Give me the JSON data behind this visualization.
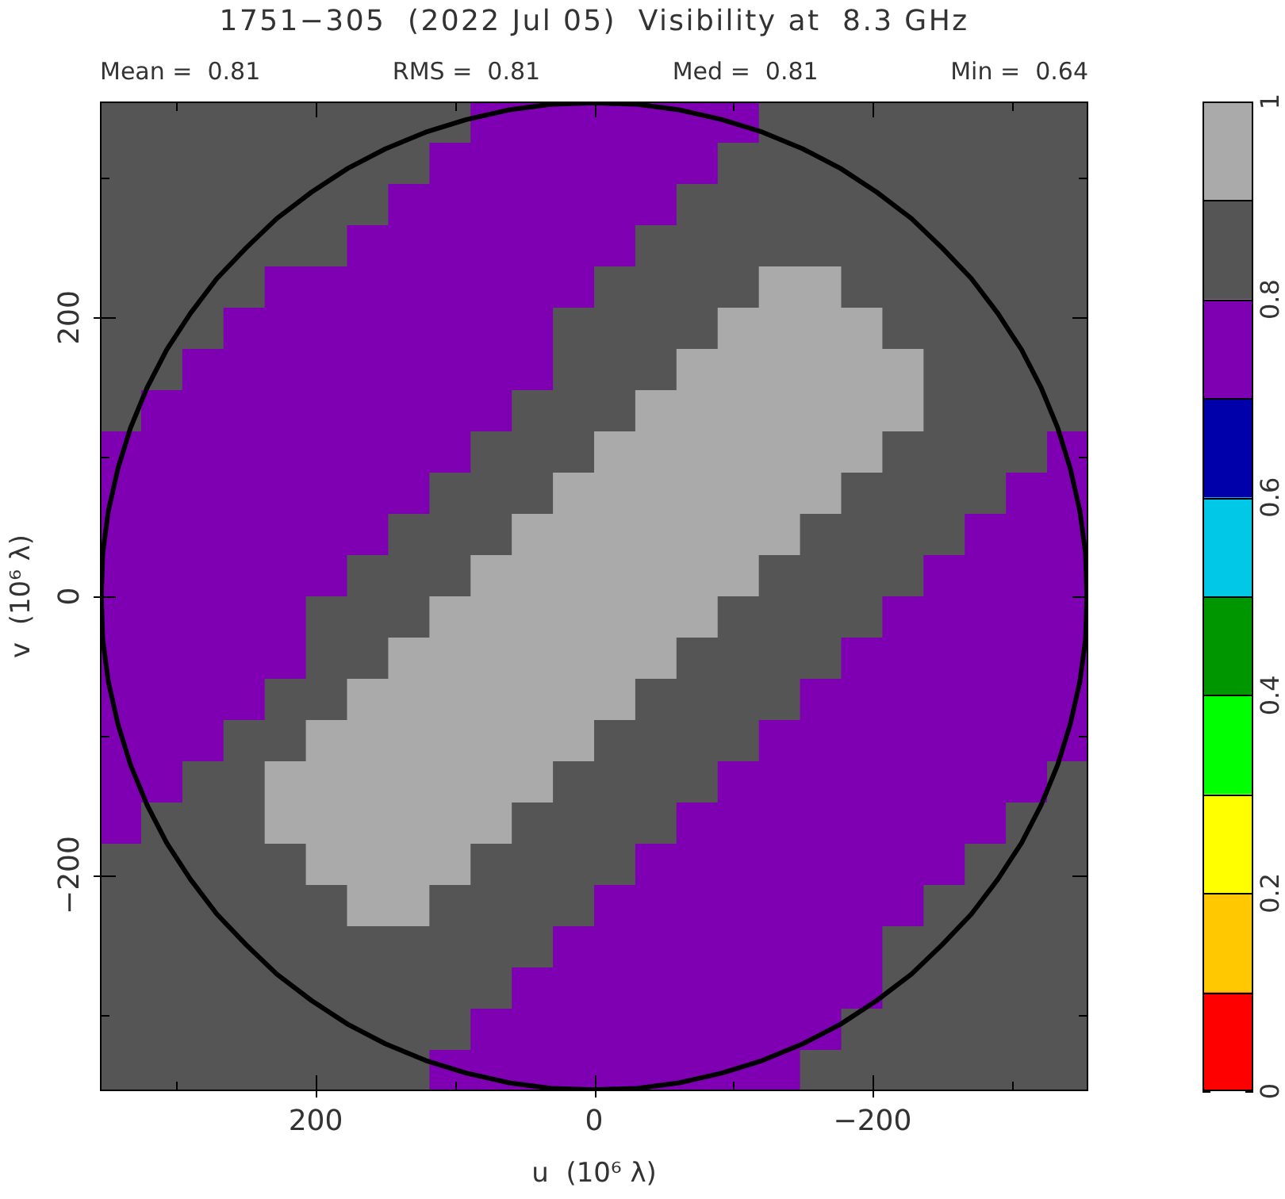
{
  "chart_data": {
    "type": "heatmap",
    "title": "1751−305  (2022 Jul 05)  Visibility at  8.3 GHz",
    "xlabel": "u  (10⁶ λ)",
    "ylabel": "v  (10⁶ λ)",
    "annotations": [
      "Mean =  0.81",
      "RMS =  0.81",
      "Med =  0.81",
      "Min =  0.64"
    ],
    "xlim": [
      355,
      -355
    ],
    "xticks": [
      {
        "value": 300,
        "label": null
      },
      200,
      {
        "value": 100,
        "label": null
      },
      0,
      {
        "value": -100,
        "label": null
      },
      {
        "value": -200,
        "label": "−200"
      },
      {
        "value": -300,
        "label": null
      }
    ],
    "ylim": [
      -355,
      355
    ],
    "yticks": [
      {
        "value": -300,
        "label": null
      },
      {
        "value": -200,
        "label": "−200"
      },
      {
        "value": -100,
        "label": null
      },
      0,
      {
        "value": 100,
        "label": null
      },
      200,
      {
        "value": 300,
        "label": null
      }
    ],
    "clim": [
      0,
      1
    ],
    "cticks": [
      0,
      0.2,
      0.4,
      0.6,
      0.8,
      1
    ],
    "colors": [
      "#ff0000",
      "#ffc800",
      "#ffff00",
      "#00ff00",
      "#009600",
      "#00c8e6",
      "#0000aa",
      "#7f00b2",
      "#555555",
      "#aaaaaa"
    ],
    "cells": [
      [
        0.85,
        0.85,
        0.85,
        0.85,
        0.85,
        0.85,
        0.85,
        0.85,
        0.85,
        0.75,
        0.75,
        0.75,
        0.75,
        0.75,
        0.75,
        0.75,
        0.85,
        0.85,
        0.85,
        0.85,
        0.85,
        0.85,
        0.85,
        0.85
      ],
      [
        0.85,
        0.85,
        0.85,
        0.85,
        0.85,
        0.85,
        0.85,
        0.85,
        0.75,
        0.75,
        0.75,
        0.75,
        0.75,
        0.75,
        0.75,
        0.85,
        0.85,
        0.85,
        0.85,
        0.85,
        0.85,
        0.85,
        0.85,
        0.85
      ],
      [
        0.85,
        0.85,
        0.85,
        0.85,
        0.85,
        0.85,
        0.85,
        0.75,
        0.75,
        0.75,
        0.75,
        0.75,
        0.75,
        0.75,
        0.85,
        0.85,
        0.85,
        0.85,
        0.85,
        0.85,
        0.85,
        0.85,
        0.85,
        0.85
      ],
      [
        0.85,
        0.85,
        0.85,
        0.85,
        0.85,
        0.85,
        0.75,
        0.75,
        0.75,
        0.75,
        0.75,
        0.75,
        0.75,
        0.85,
        0.85,
        0.85,
        0.85,
        0.85,
        0.85,
        0.85,
        0.85,
        0.85,
        0.85,
        0.85
      ],
      [
        0.85,
        0.85,
        0.85,
        0.85,
        0.75,
        0.75,
        0.75,
        0.75,
        0.75,
        0.75,
        0.75,
        0.75,
        0.85,
        0.85,
        0.85,
        0.85,
        0.95,
        0.95,
        0.85,
        0.85,
        0.85,
        0.85,
        0.85,
        0.85
      ],
      [
        0.85,
        0.85,
        0.85,
        0.75,
        0.75,
        0.75,
        0.75,
        0.75,
        0.75,
        0.75,
        0.75,
        0.85,
        0.85,
        0.85,
        0.85,
        0.95,
        0.95,
        0.95,
        0.95,
        0.85,
        0.85,
        0.85,
        0.85,
        0.85
      ],
      [
        0.85,
        0.85,
        0.75,
        0.75,
        0.75,
        0.75,
        0.75,
        0.75,
        0.75,
        0.75,
        0.75,
        0.85,
        0.85,
        0.85,
        0.95,
        0.95,
        0.95,
        0.95,
        0.95,
        0.95,
        0.85,
        0.85,
        0.85,
        0.85
      ],
      [
        0.85,
        0.75,
        0.75,
        0.75,
        0.75,
        0.75,
        0.75,
        0.75,
        0.75,
        0.75,
        0.85,
        0.85,
        0.85,
        0.95,
        0.95,
        0.95,
        0.95,
        0.95,
        0.95,
        0.95,
        0.85,
        0.85,
        0.85,
        0.85
      ],
      [
        0.75,
        0.75,
        0.75,
        0.75,
        0.75,
        0.75,
        0.75,
        0.75,
        0.75,
        0.85,
        0.85,
        0.85,
        0.95,
        0.95,
        0.95,
        0.95,
        0.95,
        0.95,
        0.95,
        0.85,
        0.85,
        0.85,
        0.85,
        0.75
      ],
      [
        0.75,
        0.75,
        0.75,
        0.75,
        0.75,
        0.75,
        0.75,
        0.75,
        0.85,
        0.85,
        0.85,
        0.95,
        0.95,
        0.95,
        0.95,
        0.95,
        0.95,
        0.95,
        0.85,
        0.85,
        0.85,
        0.85,
        0.75,
        0.75
      ],
      [
        0.75,
        0.75,
        0.75,
        0.75,
        0.75,
        0.75,
        0.75,
        0.85,
        0.85,
        0.85,
        0.95,
        0.95,
        0.95,
        0.95,
        0.95,
        0.95,
        0.95,
        0.85,
        0.85,
        0.85,
        0.85,
        0.75,
        0.75,
        0.75
      ],
      [
        0.75,
        0.75,
        0.75,
        0.75,
        0.75,
        0.75,
        0.85,
        0.85,
        0.85,
        0.95,
        0.95,
        0.95,
        0.95,
        0.95,
        0.95,
        0.95,
        0.85,
        0.85,
        0.85,
        0.85,
        0.75,
        0.75,
        0.75,
        0.75
      ],
      [
        0.75,
        0.75,
        0.75,
        0.75,
        0.75,
        0.85,
        0.85,
        0.85,
        0.95,
        0.95,
        0.95,
        0.95,
        0.95,
        0.95,
        0.95,
        0.85,
        0.85,
        0.85,
        0.85,
        0.75,
        0.75,
        0.75,
        0.75,
        0.75
      ],
      [
        0.75,
        0.75,
        0.75,
        0.75,
        0.75,
        0.85,
        0.85,
        0.95,
        0.95,
        0.95,
        0.95,
        0.95,
        0.95,
        0.95,
        0.85,
        0.85,
        0.85,
        0.85,
        0.75,
        0.75,
        0.75,
        0.75,
        0.75,
        0.75
      ],
      [
        0.75,
        0.75,
        0.75,
        0.75,
        0.85,
        0.85,
        0.95,
        0.95,
        0.95,
        0.95,
        0.95,
        0.95,
        0.95,
        0.85,
        0.85,
        0.85,
        0.85,
        0.75,
        0.75,
        0.75,
        0.75,
        0.75,
        0.75,
        0.75
      ],
      [
        0.75,
        0.75,
        0.75,
        0.85,
        0.85,
        0.95,
        0.95,
        0.95,
        0.95,
        0.95,
        0.95,
        0.95,
        0.85,
        0.85,
        0.85,
        0.85,
        0.75,
        0.75,
        0.75,
        0.75,
        0.75,
        0.75,
        0.75,
        0.75
      ],
      [
        0.75,
        0.75,
        0.85,
        0.85,
        0.95,
        0.95,
        0.95,
        0.95,
        0.95,
        0.95,
        0.95,
        0.85,
        0.85,
        0.85,
        0.85,
        0.75,
        0.75,
        0.75,
        0.75,
        0.75,
        0.75,
        0.75,
        0.75,
        0.85
      ],
      [
        0.75,
        0.85,
        0.85,
        0.85,
        0.95,
        0.95,
        0.95,
        0.95,
        0.95,
        0.95,
        0.85,
        0.85,
        0.85,
        0.85,
        0.75,
        0.75,
        0.75,
        0.75,
        0.75,
        0.75,
        0.75,
        0.75,
        0.85,
        0.85
      ],
      [
        0.85,
        0.85,
        0.85,
        0.85,
        0.85,
        0.95,
        0.95,
        0.95,
        0.95,
        0.85,
        0.85,
        0.85,
        0.85,
        0.75,
        0.75,
        0.75,
        0.75,
        0.75,
        0.75,
        0.75,
        0.75,
        0.85,
        0.85,
        0.85
      ],
      [
        0.85,
        0.85,
        0.85,
        0.85,
        0.85,
        0.85,
        0.95,
        0.95,
        0.85,
        0.85,
        0.85,
        0.85,
        0.75,
        0.75,
        0.75,
        0.75,
        0.75,
        0.75,
        0.75,
        0.75,
        0.85,
        0.85,
        0.85,
        0.85
      ],
      [
        0.85,
        0.85,
        0.85,
        0.85,
        0.85,
        0.85,
        0.85,
        0.85,
        0.85,
        0.85,
        0.85,
        0.75,
        0.75,
        0.75,
        0.75,
        0.75,
        0.75,
        0.75,
        0.75,
        0.85,
        0.85,
        0.85,
        0.85,
        0.85
      ],
      [
        0.85,
        0.85,
        0.85,
        0.85,
        0.85,
        0.85,
        0.85,
        0.85,
        0.85,
        0.85,
        0.75,
        0.75,
        0.75,
        0.75,
        0.75,
        0.75,
        0.75,
        0.75,
        0.75,
        0.85,
        0.85,
        0.85,
        0.85,
        0.85
      ],
      [
        0.85,
        0.85,
        0.85,
        0.85,
        0.85,
        0.85,
        0.85,
        0.85,
        0.85,
        0.75,
        0.75,
        0.75,
        0.75,
        0.75,
        0.75,
        0.75,
        0.75,
        0.75,
        0.85,
        0.85,
        0.85,
        0.85,
        0.85,
        0.85
      ],
      [
        0.85,
        0.85,
        0.85,
        0.85,
        0.85,
        0.85,
        0.85,
        0.85,
        0.75,
        0.75,
        0.75,
        0.75,
        0.75,
        0.75,
        0.75,
        0.75,
        0.75,
        0.85,
        0.85,
        0.85,
        0.85,
        0.85,
        0.85,
        0.85
      ]
    ],
    "series": [
      {
        "type": "line",
        "color": "#000000",
        "x": [
          354,
          353,
          349,
          342,
          333,
          321,
          307,
          290,
          271,
          250,
          228,
          203,
          177,
          150,
          121,
          92,
          61,
          31,
          0,
          -31,
          -61,
          -92,
          -121,
          -150,
          -177,
          -203,
          -228,
          -250,
          -271,
          -290,
          -307,
          -321,
          -333,
          -342,
          -349,
          -353,
          -354
        ],
        "values": [
          0,
          31,
          61,
          92,
          121,
          150,
          177,
          203,
          228,
          250,
          271,
          290,
          307,
          321,
          333,
          342,
          349,
          353,
          354,
          353,
          349,
          342,
          333,
          321,
          307,
          290,
          271,
          250,
          228,
          203,
          177,
          150,
          121,
          92,
          61,
          31,
          0
        ]
      },
      {
        "type": "line",
        "color": "#000000",
        "x": [
          354,
          353,
          349,
          342,
          333,
          321,
          307,
          290,
          271,
          250,
          228,
          203,
          177,
          150,
          121,
          92,
          61,
          31,
          0,
          -31,
          -61,
          -92,
          -121,
          -150,
          -177,
          -203,
          -228,
          -250,
          -271,
          -290,
          -307,
          -321,
          -333,
          -342,
          -349,
          -353,
          -354
        ],
        "values": [
          0,
          -31,
          -61,
          -92,
          -121,
          -150,
          -177,
          -203,
          -228,
          -250,
          -271,
          -290,
          -307,
          -321,
          -333,
          -342,
          -349,
          -353,
          -354,
          -353,
          -349,
          -342,
          -333,
          -321,
          -307,
          -290,
          -271,
          -250,
          -228,
          -203,
          -177,
          -150,
          -121,
          -92,
          -61,
          -31,
          0
        ]
      }
    ]
  }
}
